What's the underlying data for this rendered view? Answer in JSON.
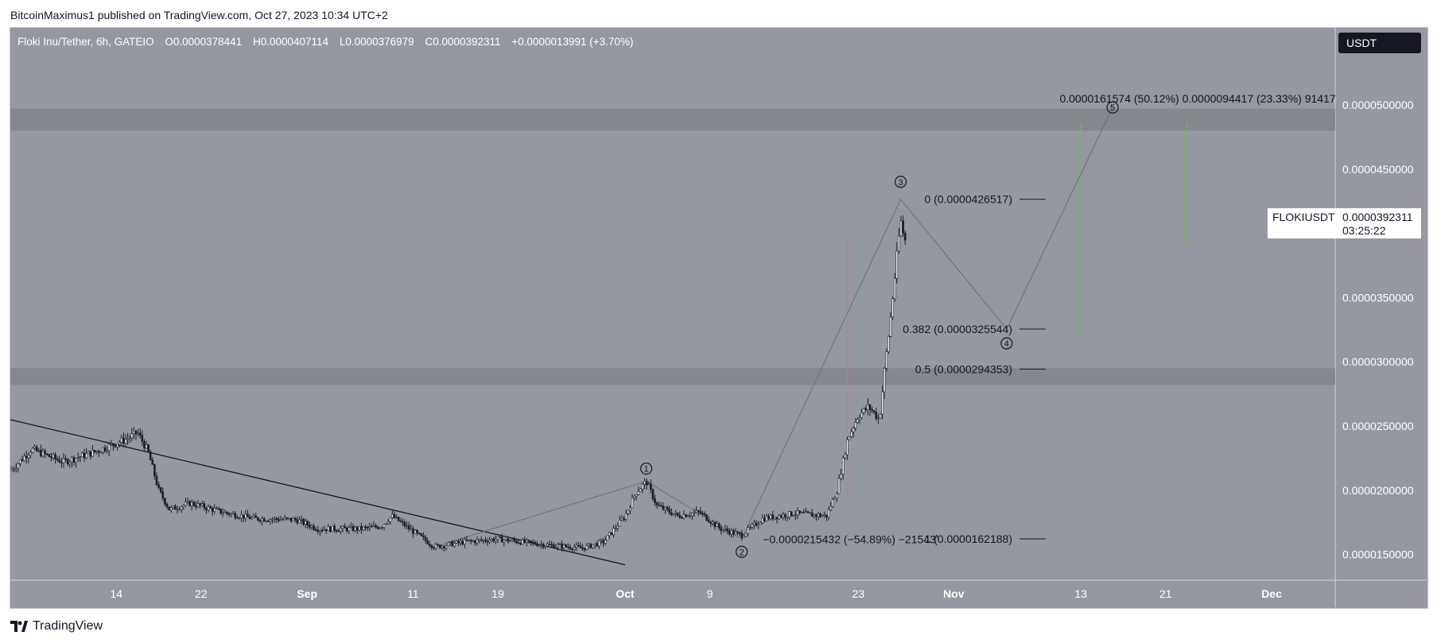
{
  "publisher_line": "BitcoinMaximus1 published on TradingView.com, Oct 27, 2023 10:34 UTC+2",
  "legend": {
    "pair": "Floki Inu/Tether, 6h, GATEIO",
    "open_key": "O",
    "open": "0.0000378441",
    "high_key": "H",
    "high": "0.0000407114",
    "low_key": "L",
    "low": "0.0000376979",
    "close_key": "C",
    "close": "0.0000392311",
    "change": "+0.0000013991 (+3.70%)"
  },
  "currency_button": "USDT",
  "price_label": {
    "symbol": "FLOKIUSDT",
    "price": "0.0000392311",
    "countdown": "03:25:22"
  },
  "brand": "TradingView",
  "colors": {
    "chart_bg": "#9598a1",
    "zone": "#85878f",
    "candle": "#1c1f27",
    "trendline": "#131722",
    "projection_up": "#7ab648",
    "projection_down": "#b87c9a",
    "wave_path": "#6b6e77"
  },
  "chart_data": {
    "type": "candlestick",
    "timeframe": "6h",
    "x_ticks": [
      "14",
      "22",
      "Sep",
      "11",
      "19",
      "Oct",
      "9",
      "23",
      "Nov",
      "13",
      "21",
      "Dec"
    ],
    "x_tick_dates": [
      "2023-08-14",
      "2023-08-22",
      "2023-09-01",
      "2023-09-11",
      "2023-09-19",
      "2023-10-01",
      "2023-10-09",
      "2023-10-23",
      "2023-11-01",
      "2023-11-13",
      "2023-11-21",
      "2023-12-01"
    ],
    "y_ticks": [
      "0.0000500000",
      "0.0000450000",
      "0.0000400000",
      "0.0000350000",
      "0.0000300000",
      "0.0000250000",
      "0.0000200000",
      "0.0000150000"
    ],
    "y_tick_values": [
      5e-05,
      4.5e-05,
      4e-05,
      3.5e-05,
      3e-05,
      2.5e-05,
      2e-05,
      1.5e-05
    ],
    "ylim": [
      1.3e-05,
      5.6e-05
    ],
    "xlim": [
      "2023-08-04",
      "2023-12-07"
    ],
    "price_path": [
      [
        "2023-08-04",
        2.15e-05
      ],
      [
        "2023-08-06",
        2.32e-05
      ],
      [
        "2023-08-09",
        2.22e-05
      ],
      [
        "2023-08-12",
        2.3e-05
      ],
      [
        "2023-08-15",
        2.4e-05
      ],
      [
        "2023-08-16",
        2.45e-05
      ],
      [
        "2023-08-17",
        2.3e-05
      ],
      [
        "2023-08-18",
        2e-05
      ],
      [
        "2023-08-19",
        1.85e-05
      ],
      [
        "2023-08-21",
        1.9e-05
      ],
      [
        "2023-08-24",
        1.83e-05
      ],
      [
        "2023-08-27",
        1.78e-05
      ],
      [
        "2023-08-31",
        1.77e-05
      ],
      [
        "2023-09-02",
        1.7e-05
      ],
      [
        "2023-09-06",
        1.7e-05
      ],
      [
        "2023-09-08",
        1.72e-05
      ],
      [
        "2023-09-09",
        1.8e-05
      ],
      [
        "2023-09-11",
        1.68e-05
      ],
      [
        "2023-09-13",
        1.56e-05
      ],
      [
        "2023-09-16",
        1.6e-05
      ],
      [
        "2023-09-19",
        1.62e-05
      ],
      [
        "2023-09-23",
        1.58e-05
      ],
      [
        "2023-09-27",
        1.55e-05
      ],
      [
        "2023-09-29",
        1.6e-05
      ],
      [
        "2023-10-01",
        1.8e-05
      ],
      [
        "2023-10-02",
        1.98e-05
      ],
      [
        "2023-10-03",
        2.07e-05
      ],
      [
        "2023-10-04",
        1.88e-05
      ],
      [
        "2023-10-06",
        1.8e-05
      ],
      [
        "2023-10-08",
        1.83e-05
      ],
      [
        "2023-10-10",
        1.7e-05
      ],
      [
        "2023-10-12",
        1.65e-05
      ],
      [
        "2023-10-14",
        1.78e-05
      ],
      [
        "2023-10-17",
        1.82e-05
      ],
      [
        "2023-10-20",
        1.8e-05
      ],
      [
        "2023-10-21",
        2e-05
      ],
      [
        "2023-10-22",
        2.4e-05
      ],
      [
        "2023-10-23",
        2.58e-05
      ],
      [
        "2023-10-24",
        2.65e-05
      ],
      [
        "2023-10-25",
        2.55e-05
      ],
      [
        "2023-10-25T12",
        2.95e-05
      ],
      [
        "2023-10-26",
        3.3e-05
      ],
      [
        "2023-10-26T12",
        3.7e-05
      ],
      [
        "2023-10-27",
        4.1e-05
      ],
      [
        "2023-10-27T06",
        4e-05
      ],
      [
        "2023-10-27T12",
        3.92e-05
      ]
    ],
    "resistance_zones": [
      [
        4.8e-05,
        4.97e-05
      ],
      [
        2.82e-05,
        2.95e-05
      ]
    ],
    "trendline": [
      [
        "2023-08-04",
        2.55e-05
      ],
      [
        "2023-10-01",
        1.42e-05
      ]
    ],
    "wave_labels": [
      {
        "label": "1",
        "date": "2023-10-03",
        "price": 2.07e-05
      },
      {
        "label": "2",
        "date": "2023-10-12",
        "price": 1.62e-05
      },
      {
        "label": "3",
        "date": "2023-10-27",
        "price": 4.265e-05
      },
      {
        "label": "4",
        "date": "2023-11-06",
        "price": 3.255e-05
      },
      {
        "label": "5",
        "date": "2023-11-16",
        "price": 4.98e-05
      }
    ],
    "wave_path": [
      [
        "2023-09-13",
        1.56e-05
      ],
      [
        "2023-10-03",
        2.07e-05
      ],
      [
        "2023-10-12",
        1.62e-05
      ],
      [
        "2023-10-27",
        4.265e-05
      ],
      [
        "2023-11-06",
        3.255e-05
      ],
      [
        "2023-11-16",
        4.98e-05
      ]
    ],
    "fib_levels": [
      {
        "label": "0 (0.0000426517)",
        "price": 4.26517e-05
      },
      {
        "label": "0.382 (0.0000325544)",
        "price": 3.25544e-05
      },
      {
        "label": "0.5 (0.0000294353)",
        "price": 2.94353e-05
      },
      {
        "label": "1 (0.0000162188)",
        "price": 1.62188e-05
      }
    ],
    "measure_annotations": [
      {
        "text": "−0.0000215432 (−54.89%) −21543’",
        "date": "2023-10-14",
        "price": 1.62e-05
      },
      {
        "text": "0.0000161574 (50.12%) 0.0000094417 (23.33%) 91417",
        "date": "2023-11-11",
        "price": 5e-05
      }
    ],
    "projection_bars": [
      {
        "date": "2023-11-13",
        "from": 3.2e-05,
        "to": 4.85e-05,
        "color": "up"
      },
      {
        "date": "2023-11-23",
        "from": 3.9e-05,
        "to": 4.85e-05,
        "color": "up"
      },
      {
        "date": "2023-10-22",
        "from": 1.95e-05,
        "to": 4e-05,
        "color": "down"
      }
    ]
  }
}
